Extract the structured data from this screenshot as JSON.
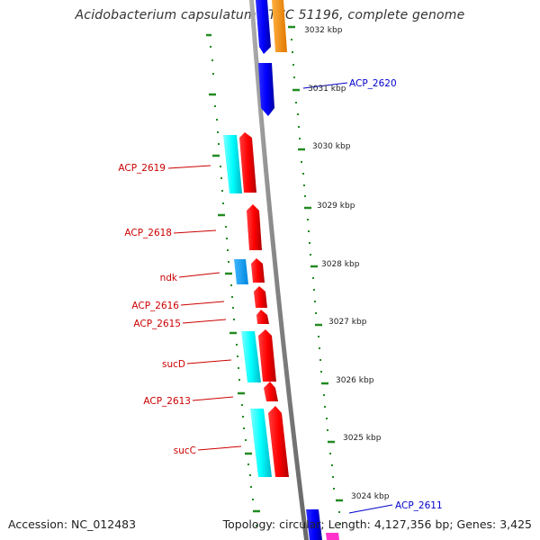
{
  "title": "Acidobacterium capsulatum ATCC 51196, complete genome",
  "footer": {
    "accession": "Accession: NC_012483",
    "summary": "Topology: circular; Length: 4,127,356 bp; Genes: 3,425"
  },
  "scale_labels": [
    "3032 kbp",
    "3031 kbp",
    "3030 kbp",
    "3029 kbp",
    "3028 kbp",
    "3027 kbp",
    "3026 kbp",
    "3025 kbp",
    "3024 kbp"
  ],
  "gene_labels_left": [
    "ACP_2619",
    "ACP_2618",
    "ndk",
    "ACP_2616",
    "ACP_2615",
    "sucD",
    "ACP_2613",
    "sucC"
  ],
  "gene_labels_right": [
    "ACP_2620",
    "ACP_2611"
  ],
  "colors": {
    "forward_cds": "#ff0000",
    "reverse_cds": "#0000ff",
    "forward_cog": "#00ffff",
    "other_cog": "#ff9900",
    "left_label": "#cc0000",
    "right_label": "#0000cc",
    "backbone": "#888888",
    "tick": "#228b22"
  }
}
